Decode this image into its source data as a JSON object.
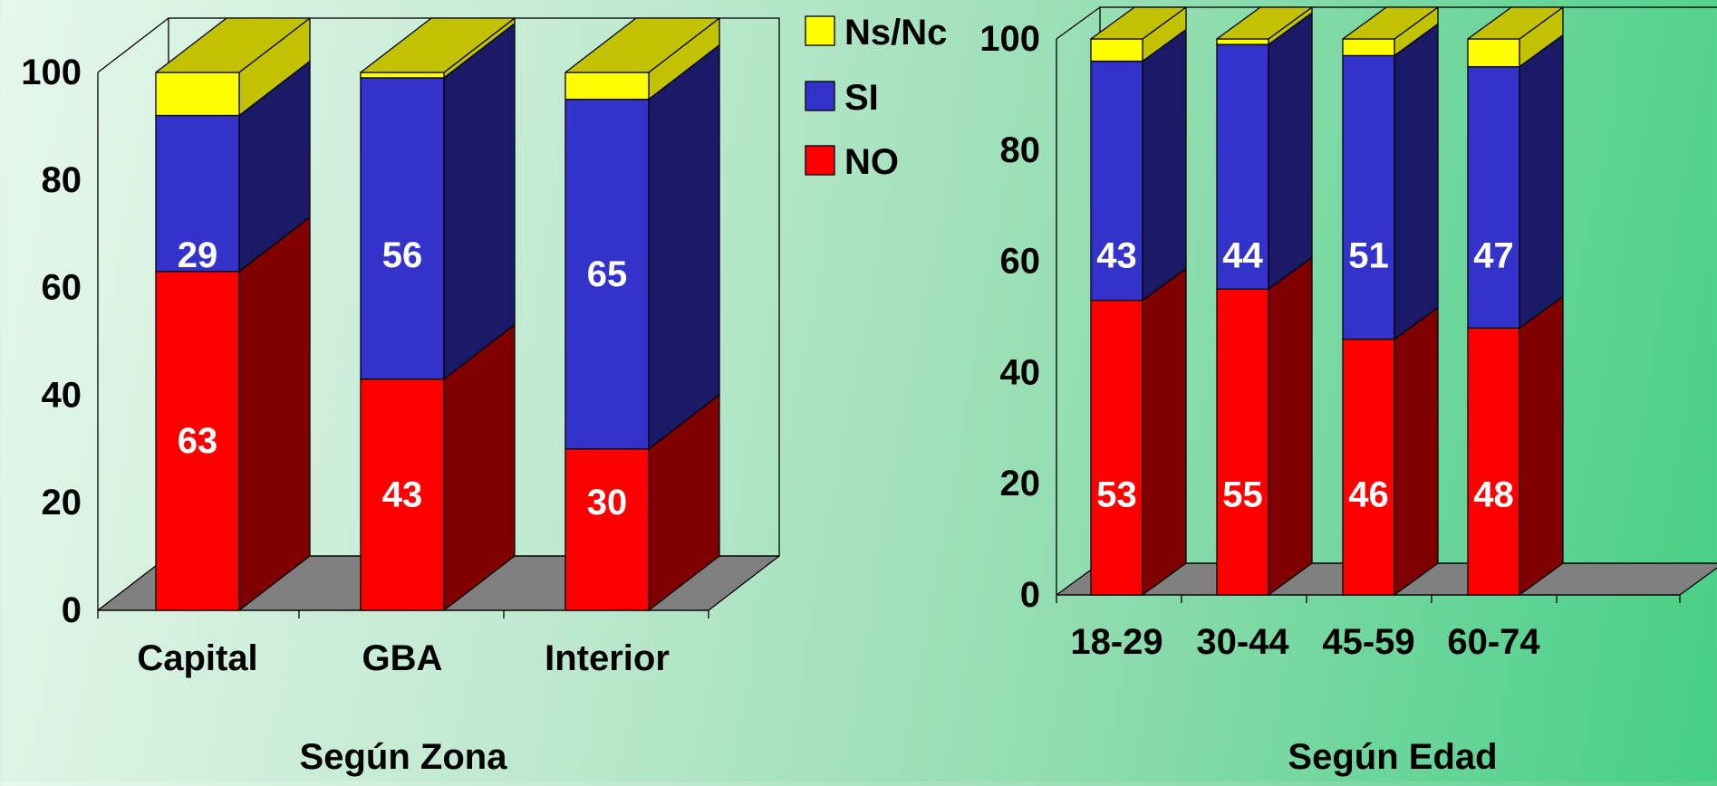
{
  "colors": {
    "no": "#ff0000",
    "no_side": "#800000",
    "si": "#3333cc",
    "si_side": "#1a1a66",
    "nsnc": "#ffff00",
    "nsnc_side": "#c2c200",
    "floor": "#808080"
  },
  "legend": {
    "placement": "top-center",
    "items": [
      {
        "label": "Ns/Nc",
        "color": "#ffff00"
      },
      {
        "label": "SI",
        "color": "#3333cc"
      },
      {
        "label": "NO",
        "color": "#ff0000"
      }
    ]
  },
  "chart_data": [
    {
      "type": "bar",
      "stacked": true,
      "three_d": true,
      "title": "",
      "xlabel": "Según Zona",
      "ylabel": "",
      "ylim": [
        0,
        100
      ],
      "yticks": [
        "0",
        "20",
        "40",
        "60",
        "80",
        "100"
      ],
      "categories": [
        "Capital",
        "GBA",
        "Interior"
      ],
      "series": [
        {
          "name": "NO",
          "values": [
            63,
            43,
            30
          ],
          "labels": [
            "63",
            "43",
            "30"
          ]
        },
        {
          "name": "SI",
          "values": [
            29,
            56,
            65
          ],
          "labels": [
            "29",
            "56",
            "65"
          ]
        },
        {
          "name": "Ns/Nc",
          "values": [
            8,
            1,
            5
          ],
          "labels": [
            "",
            "",
            ""
          ]
        }
      ]
    },
    {
      "type": "bar",
      "stacked": true,
      "three_d": true,
      "title": "",
      "xlabel": "Según Edad",
      "ylabel": "",
      "ylim": [
        0,
        100
      ],
      "yticks": [
        "0",
        "20",
        "40",
        "60",
        "80",
        "100"
      ],
      "categories": [
        "18-29",
        "30-44",
        "45-59",
        "60-74"
      ],
      "series": [
        {
          "name": "NO",
          "values": [
            53,
            55,
            46,
            48
          ],
          "labels": [
            "53",
            "55",
            "46",
            "48"
          ]
        },
        {
          "name": "SI",
          "values": [
            43,
            44,
            51,
            47
          ],
          "labels": [
            "43",
            "44",
            "51",
            "47"
          ]
        },
        {
          "name": "Ns/Nc",
          "values": [
            4,
            1,
            3,
            5
          ],
          "labels": [
            "",
            "",
            "",
            ""
          ]
        }
      ]
    }
  ]
}
